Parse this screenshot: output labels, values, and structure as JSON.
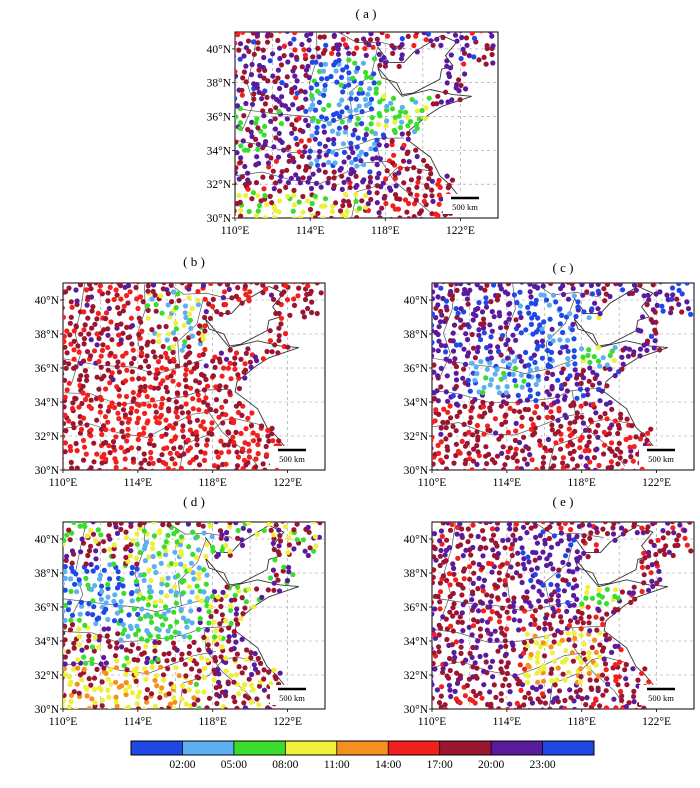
{
  "panels": [
    {
      "label": "( a )",
      "variant": "a"
    },
    {
      "label": "( b )",
      "variant": "b"
    },
    {
      "label": "( c )",
      "variant": "c"
    },
    {
      "label": "( d )",
      "variant": "d"
    },
    {
      "label": "( e )",
      "variant": "e"
    }
  ],
  "lat_ticks": [
    "30°N",
    "32°N",
    "34°N",
    "36°N",
    "38°N",
    "40°N"
  ],
  "lon_ticks": [
    "110°E",
    "114°E",
    "118°E",
    "122°E"
  ],
  "scale_label": "500 km",
  "colorbar": {
    "colors": [
      "#1f48e6",
      "#5cb0f2",
      "#38dd2e",
      "#eef03a",
      "#f5901e",
      "#f2201c",
      "#9b1530",
      "#5a1a9e",
      "#1f48e6"
    ],
    "labels": [
      "02:00",
      "05:00",
      "08:00",
      "11:00",
      "14:00",
      "17:00",
      "20:00",
      "23:00"
    ]
  }
}
